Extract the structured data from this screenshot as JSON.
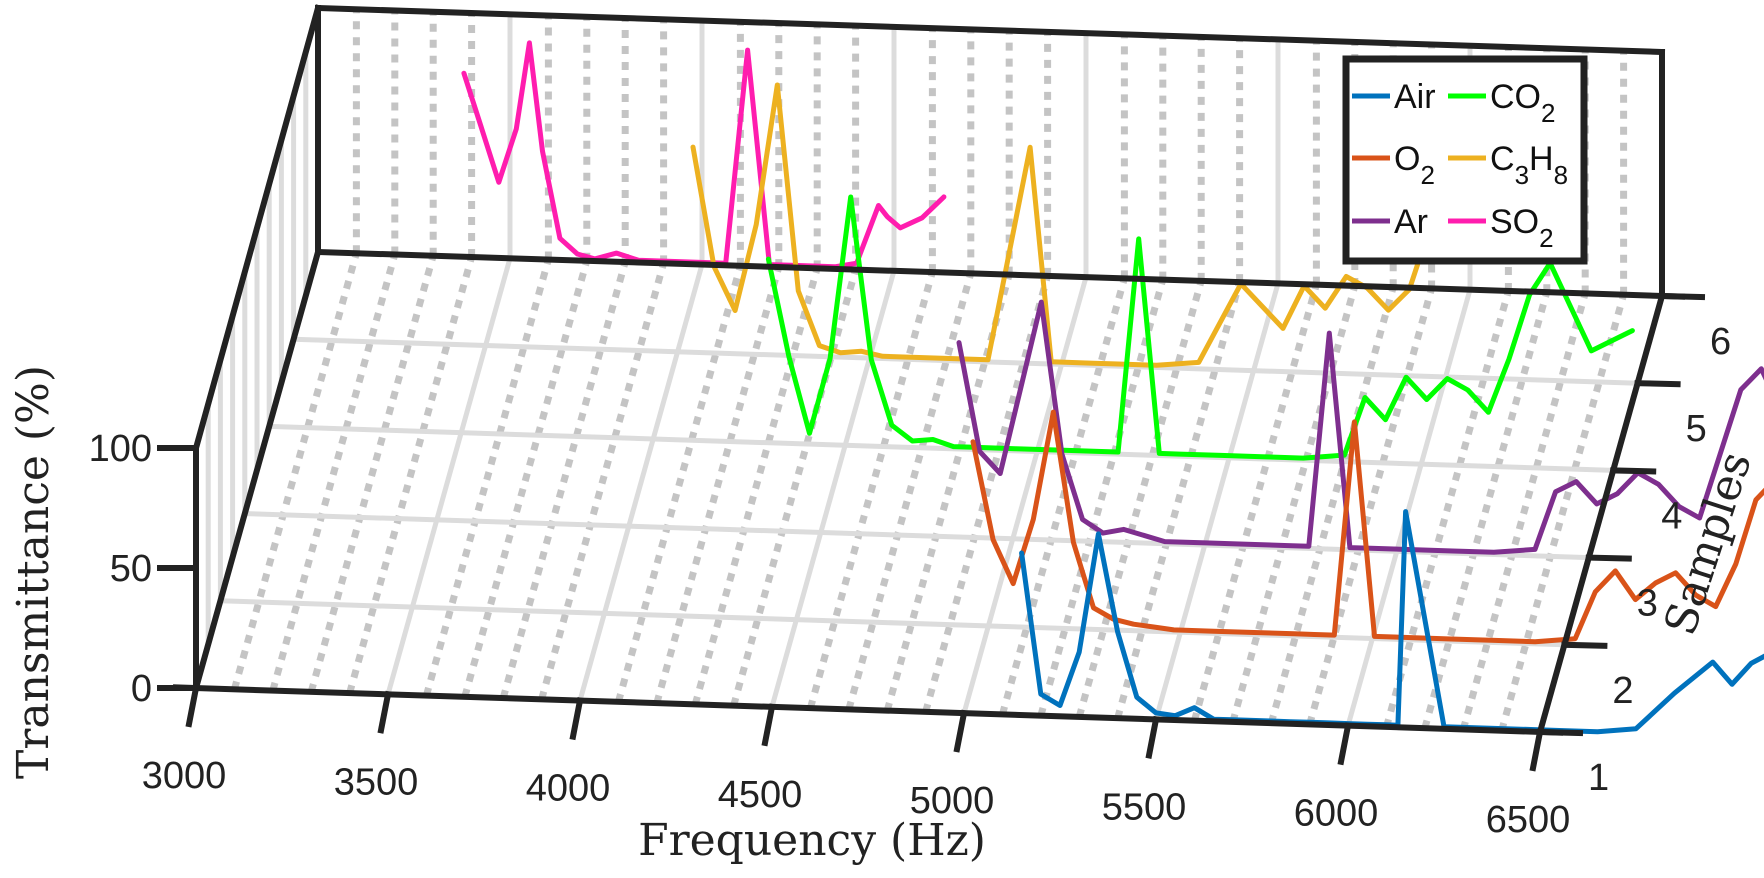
{
  "chart_data": {
    "type": "line",
    "subtype": "3d-waterfall",
    "title": "",
    "xlabel": "Frequency (Hz)",
    "ylabel": "Samples",
    "zlabel": "Transmittance (%)",
    "xlim": [
      3000,
      6500
    ],
    "ylim": [
      1,
      6
    ],
    "zlim": [
      0,
      100
    ],
    "x_ticks": [
      "3000",
      "3500",
      "4000",
      "4500",
      "5000",
      "5500",
      "6000",
      "6500"
    ],
    "y_ticks": [
      "1",
      "2",
      "3",
      "4",
      "5",
      "6"
    ],
    "z_ticks": [
      "0",
      "50",
      "100"
    ],
    "grid": true,
    "legend_position": "upper right (on back wall)",
    "legend": [
      {
        "label": "Air",
        "base": "Air",
        "sub": "",
        "color": "#0072BD"
      },
      {
        "label": "CO2",
        "base": "CO",
        "sub": "2",
        "color": "#00FF00"
      },
      {
        "label": "O2",
        "base": "O",
        "sub": "2",
        "color": "#D95319"
      },
      {
        "label": "C3H8",
        "base": "C",
        "sub": "3",
        "base2": "H",
        "sub2": "8",
        "color": "#EDB120"
      },
      {
        "label": "Ar",
        "base": "Ar",
        "sub": "",
        "color": "#7E2F8E"
      },
      {
        "label": "SO2",
        "base": "SO",
        "sub": "2",
        "color": "#FF1DAE"
      }
    ],
    "series": [
      {
        "name": "Air",
        "sample": 1,
        "color": "#0072BD",
        "x_offset": 2100,
        "x": [
          3000,
          3050,
          3100,
          3150,
          3200,
          3250,
          3300,
          3350,
          3400,
          3450,
          3500,
          3550,
          3600,
          3650,
          3700,
          3750,
          3800,
          3850,
          3900,
          3950,
          3980,
          4000,
          4100,
          4200,
          4300,
          4400,
          4500,
          4600,
          4700,
          4800,
          4850,
          4900,
          4950,
          5000,
          5050,
          5100,
          5150,
          5200,
          5250,
          5300,
          5350,
          5400
        ],
        "z": [
          75,
          10,
          5,
          30,
          85,
          40,
          10,
          3,
          2,
          6,
          1,
          1,
          1,
          1,
          1,
          1,
          1,
          1,
          1,
          1,
          1,
          100,
          1,
          1,
          1,
          1,
          1,
          3,
          20,
          35,
          25,
          35,
          40,
          30,
          22,
          30,
          60,
          85,
          90,
          80,
          70,
          60
        ]
      },
      {
        "name": "O2",
        "sample": 2,
        "color": "#D95319",
        "x_offset": 2050,
        "x": [
          3000,
          3050,
          3100,
          3150,
          3200,
          3250,
          3300,
          3350,
          3400,
          3450,
          3500,
          3600,
          3700,
          3800,
          3850,
          3900,
          3950,
          4000,
          4100,
          4200,
          4300,
          4400,
          4500,
          4550,
          4600,
          4650,
          4700,
          4750,
          4800,
          4850,
          4900,
          4950,
          5000,
          5050,
          5100,
          5150,
          5200
        ],
        "z": [
          85,
          40,
          20,
          50,
          100,
          40,
          10,
          5,
          3,
          2,
          1,
          1,
          1,
          1,
          1,
          1,
          100,
          1,
          1,
          1,
          1,
          1,
          3,
          25,
          35,
          22,
          30,
          35,
          25,
          20,
          40,
          70,
          80,
          60,
          40,
          35,
          50
        ]
      },
      {
        "name": "Ar",
        "sample": 3,
        "color": "#7E2F8E",
        "x_offset": 2000,
        "x": [
          3000,
          3050,
          3100,
          3150,
          3200,
          3250,
          3300,
          3350,
          3400,
          3500,
          3600,
          3700,
          3800,
          3850,
          3900,
          3950,
          4000,
          4100,
          4200,
          4300,
          4400,
          4450,
          4500,
          4550,
          4600,
          4650,
          4700,
          4750,
          4800,
          4850,
          4900,
          4950,
          5000,
          5050,
          5100
        ],
        "z": [
          90,
          40,
          30,
          70,
          110,
          40,
          10,
          4,
          6,
          1,
          1,
          1,
          1,
          1,
          100,
          1,
          1,
          1,
          1,
          1,
          3,
          30,
          35,
          25,
          30,
          40,
          35,
          25,
          20,
          50,
          80,
          90,
          70,
          55,
          65
        ]
      },
      {
        "name": "CO2",
        "sample": 4,
        "color": "#00FF00",
        "x_offset": 1450,
        "x": [
          3000,
          3050,
          3100,
          3150,
          3200,
          3250,
          3300,
          3350,
          3400,
          3450,
          3500,
          3600,
          3700,
          3800,
          3850,
          3900,
          3950,
          4000,
          4100,
          4200,
          4300,
          4400,
          4450,
          4500,
          4550,
          4600,
          4650,
          4700,
          4750,
          4800,
          4850,
          4900,
          4950,
          5000,
          5050,
          5100
        ],
        "z": [
          85,
          40,
          5,
          40,
          115,
          40,
          10,
          3,
          4,
          1,
          1,
          1,
          1,
          1,
          1,
          100,
          1,
          1,
          1,
          1,
          1,
          3,
          30,
          20,
          40,
          30,
          40,
          35,
          25,
          50,
          80,
          95,
          75,
          55,
          60,
          65
        ]
      },
      {
        "name": "C3H8",
        "sample": 5,
        "color": "#EDB120",
        "x_offset": 1400,
        "x": [
          3000,
          3050,
          3100,
          3150,
          3200,
          3250,
          3300,
          3350,
          3400,
          3450,
          3500,
          3600,
          3700,
          3800,
          3850,
          3900,
          3950,
          4000,
          4100,
          4200,
          4300,
          4400,
          4450,
          4500,
          4550,
          4600,
          4650,
          4700,
          4750,
          4800,
          4850,
          4900,
          4950,
          5000,
          5050
        ],
        "z": [
          95,
          40,
          20,
          60,
          125,
          30,
          5,
          2,
          3,
          1,
          1,
          1,
          1,
          100,
          1,
          1,
          1,
          1,
          1,
          3,
          40,
          20,
          40,
          30,
          45,
          40,
          30,
          40,
          70,
          100,
          110,
          90,
          75,
          80,
          85
        ]
      },
      {
        "name": "SO2",
        "sample": 6,
        "color": "#FF1DAE",
        "x_offset": 0,
        "x": [
          3000,
          3040,
          3080,
          3120,
          3150,
          3180,
          3220,
          3260,
          3300,
          3350,
          3400,
          3450,
          3500,
          3550,
          3600,
          3650,
          3700,
          3750,
          3800,
          3850,
          3900,
          3950,
          3970,
          4000,
          4050,
          4100
        ],
        "z": [
          85,
          60,
          35,
          60,
          100,
          50,
          10,
          3,
          1,
          4,
          1,
          1,
          1,
          1,
          1,
          100,
          1,
          1,
          1,
          1,
          3,
          30,
          25,
          20,
          25,
          35
        ]
      }
    ]
  }
}
